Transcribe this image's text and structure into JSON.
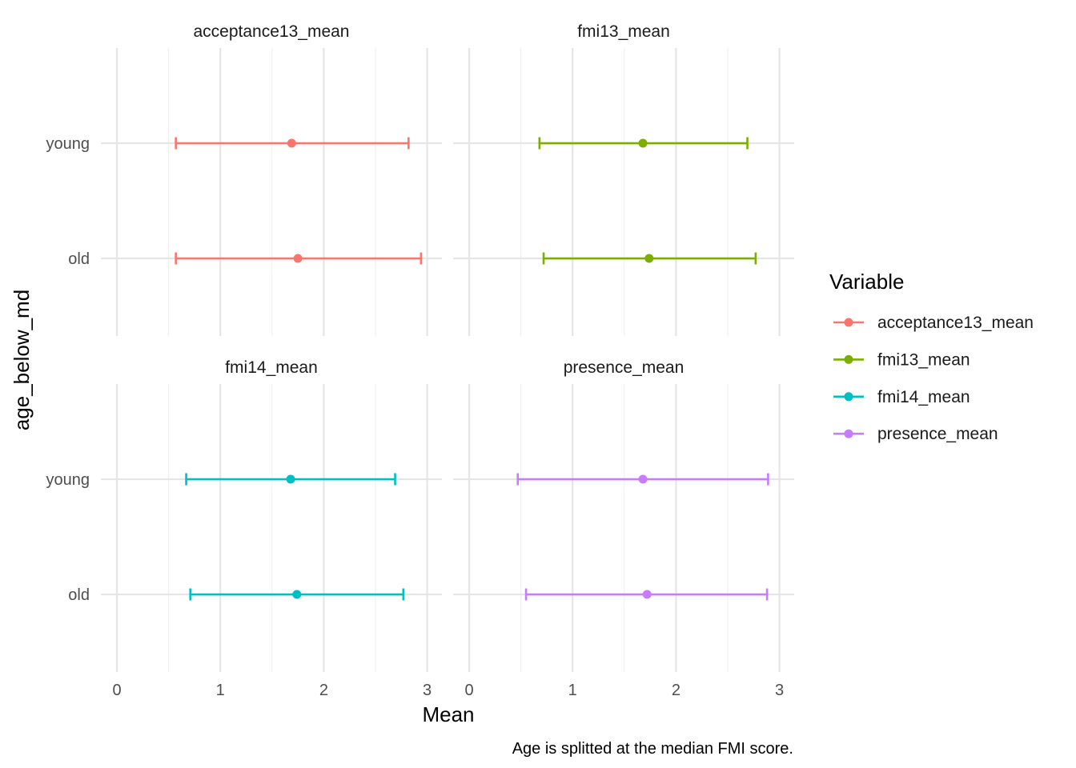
{
  "chart_data": {
    "type": "scatter",
    "subtype": "point-with-horizontal-errorbars, faceted 2x2",
    "xlabel": "Mean",
    "ylabel": "age_below_md",
    "caption": "Age is splitted at the median FMI score.",
    "xlim": [
      0,
      3
    ],
    "x_ticks": [
      "0",
      "1",
      "2",
      "3"
    ],
    "y_categories": [
      "young",
      "old"
    ],
    "grid": true,
    "legend": {
      "title": "Variable",
      "placement": "right",
      "entries": [
        "acceptance13_mean",
        "fmi13_mean",
        "fmi14_mean",
        "presence_mean"
      ]
    },
    "panels": [
      {
        "title": "acceptance13_mean",
        "color": "#F8766D",
        "points": [
          {
            "group": "young",
            "mean": 1.69,
            "lower": 0.57,
            "upper": 2.82
          },
          {
            "group": "old",
            "mean": 1.75,
            "lower": 0.57,
            "upper": 2.94
          }
        ]
      },
      {
        "title": "fmi13_mean",
        "color": "#7CAE00",
        "points": [
          {
            "group": "young",
            "mean": 1.68,
            "lower": 0.68,
            "upper": 2.69
          },
          {
            "group": "old",
            "mean": 1.74,
            "lower": 0.72,
            "upper": 2.77
          }
        ]
      },
      {
        "title": "fmi14_mean",
        "color": "#00BFC4",
        "points": [
          {
            "group": "young",
            "mean": 1.68,
            "lower": 0.67,
            "upper": 2.69
          },
          {
            "group": "old",
            "mean": 1.74,
            "lower": 0.71,
            "upper": 2.77
          }
        ]
      },
      {
        "title": "presence_mean",
        "color": "#C77CFF",
        "points": [
          {
            "group": "young",
            "mean": 1.68,
            "lower": 0.47,
            "upper": 2.89
          },
          {
            "group": "old",
            "mean": 1.72,
            "lower": 0.55,
            "upper": 2.88
          }
        ]
      }
    ]
  }
}
